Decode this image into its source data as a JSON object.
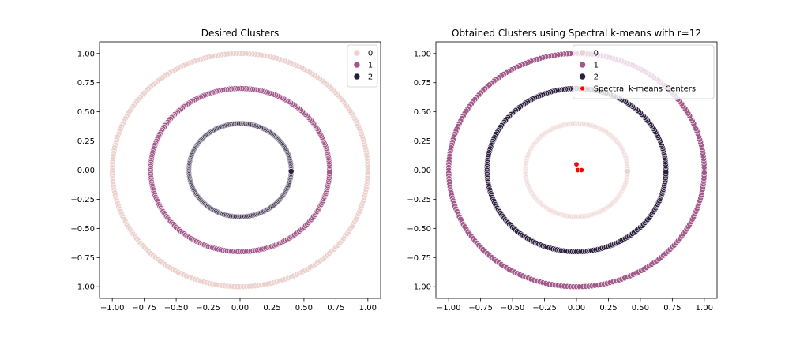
{
  "chart_data": [
    {
      "type": "scatter",
      "title": "Desired Clusters",
      "xlabel": "",
      "ylabel": "",
      "xlim": [
        -1.1,
        1.1
      ],
      "ylim": [
        -1.1,
        1.1
      ],
      "xticks": [
        -1.0,
        -0.75,
        -0.5,
        -0.25,
        0.0,
        0.25,
        0.5,
        0.75,
        1.0
      ],
      "yticks": [
        -1.0,
        -0.75,
        -0.5,
        -0.25,
        0.0,
        0.25,
        0.5,
        0.75,
        1.0
      ],
      "xtick_labels": [
        "−1.00",
        "−0.75",
        "−0.50",
        "−0.25",
        "0.00",
        "0.25",
        "0.50",
        "0.75",
        "1.00"
      ],
      "ytick_labels": [
        "−1.00",
        "−0.75",
        "−0.50",
        "−0.25",
        "0.00",
        "0.25",
        "0.50",
        "0.75",
        "1.00"
      ],
      "grid": false,
      "legend_position": "upper right",
      "series": [
        {
          "name": "0",
          "color": "#ecd2cf",
          "shape": "circle",
          "radius": 1.0
        },
        {
          "name": "1",
          "color": "#a2588a",
          "shape": "circle",
          "radius": 0.7
        },
        {
          "name": "2",
          "color": "#2c1e3e",
          "shape": "circle",
          "radius": 0.4
        }
      ]
    },
    {
      "type": "scatter",
      "title": "Obtained Clusters using Spectral k-means with r=12",
      "xlabel": "",
      "ylabel": "",
      "xlim": [
        -1.1,
        1.1
      ],
      "ylim": [
        -1.1,
        1.1
      ],
      "xticks": [
        -1.0,
        -0.75,
        -0.5,
        -0.25,
        0.0,
        0.25,
        0.5,
        0.75,
        1.0
      ],
      "yticks": [
        -1.0,
        -0.75,
        -0.5,
        -0.25,
        0.0,
        0.25,
        0.5,
        0.75,
        1.0
      ],
      "xtick_labels": [
        "−1.00",
        "−0.75",
        "−0.50",
        "−0.25",
        "0.00",
        "0.25",
        "0.50",
        "0.75",
        "1.00"
      ],
      "ytick_labels": [
        "−1.00",
        "−0.75",
        "−0.50",
        "−0.25",
        "0.00",
        "0.25",
        "0.50",
        "0.75",
        "1.00"
      ],
      "grid": false,
      "legend_position": "upper right",
      "series": [
        {
          "name": "0",
          "color": "#ecd2cf",
          "shape": "circle",
          "radius": 0.4
        },
        {
          "name": "1",
          "color": "#a2588a",
          "shape": "circle",
          "radius": 1.0
        },
        {
          "name": "2",
          "color": "#2c1e3e",
          "shape": "circle",
          "radius": 0.7
        }
      ],
      "centers": {
        "name": "Spectral k-means Centers",
        "color": "#ff0000",
        "points": [
          [
            0.0,
            0.05
          ],
          [
            0.01,
            0.0
          ],
          [
            0.04,
            0.0
          ]
        ]
      }
    }
  ]
}
